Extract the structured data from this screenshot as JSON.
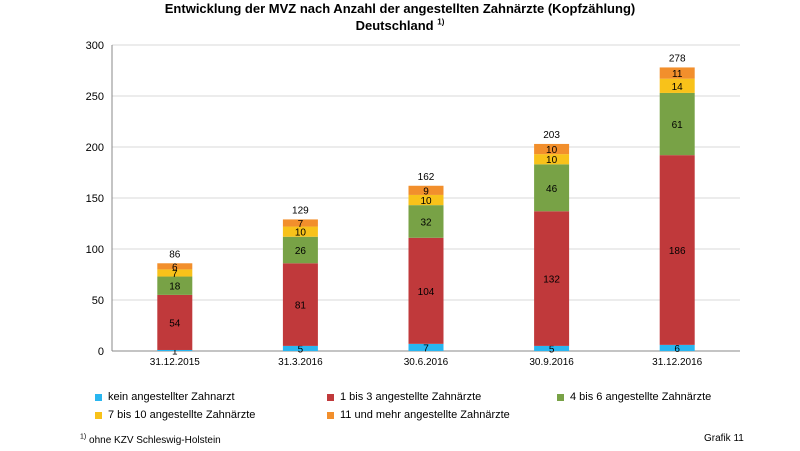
{
  "chart_data": {
    "type": "bar",
    "stacked": true,
    "title": "Entwicklung der MVZ nach Anzahl der angestellten Zahnärzte (Kopfzählung)",
    "subtitle": "Deutschland",
    "subtitle_footnote_mark": "1)",
    "categories": [
      "31.12.2015",
      "31.3.2016",
      "30.6.2016",
      "30.9.2016",
      "31.12.2016"
    ],
    "series": [
      {
        "name": "kein angestellter Zahnarzt",
        "color": "#29b6f0",
        "values": [
          1,
          5,
          7,
          5,
          6
        ]
      },
      {
        "name": "1 bis 3 angestellte Zahnärzte",
        "color": "#c0393b",
        "values": [
          54,
          81,
          104,
          132,
          186
        ]
      },
      {
        "name": "4 bis 6 angestellte Zahnärzte",
        "color": "#78a246",
        "values": [
          18,
          26,
          32,
          46,
          61
        ]
      },
      {
        "name": "7 bis 10 angestellte Zahnärzte",
        "color": "#f8c21a",
        "values": [
          7,
          10,
          10,
          10,
          14
        ]
      },
      {
        "name": "11 und mehr angestellte Zahnärzte",
        "color": "#f28f2c",
        "values": [
          6,
          7,
          9,
          10,
          11
        ]
      }
    ],
    "totals": [
      86,
      129,
      162,
      203,
      278
    ],
    "yticks": [
      0,
      50,
      100,
      150,
      200,
      250,
      300
    ],
    "ylim": [
      0,
      300
    ],
    "grid": true,
    "legend_position": "bottom"
  },
  "footnote": {
    "mark": "1)",
    "text": "ohne KZV Schleswig-Holstein"
  },
  "label": "Grafik 11"
}
